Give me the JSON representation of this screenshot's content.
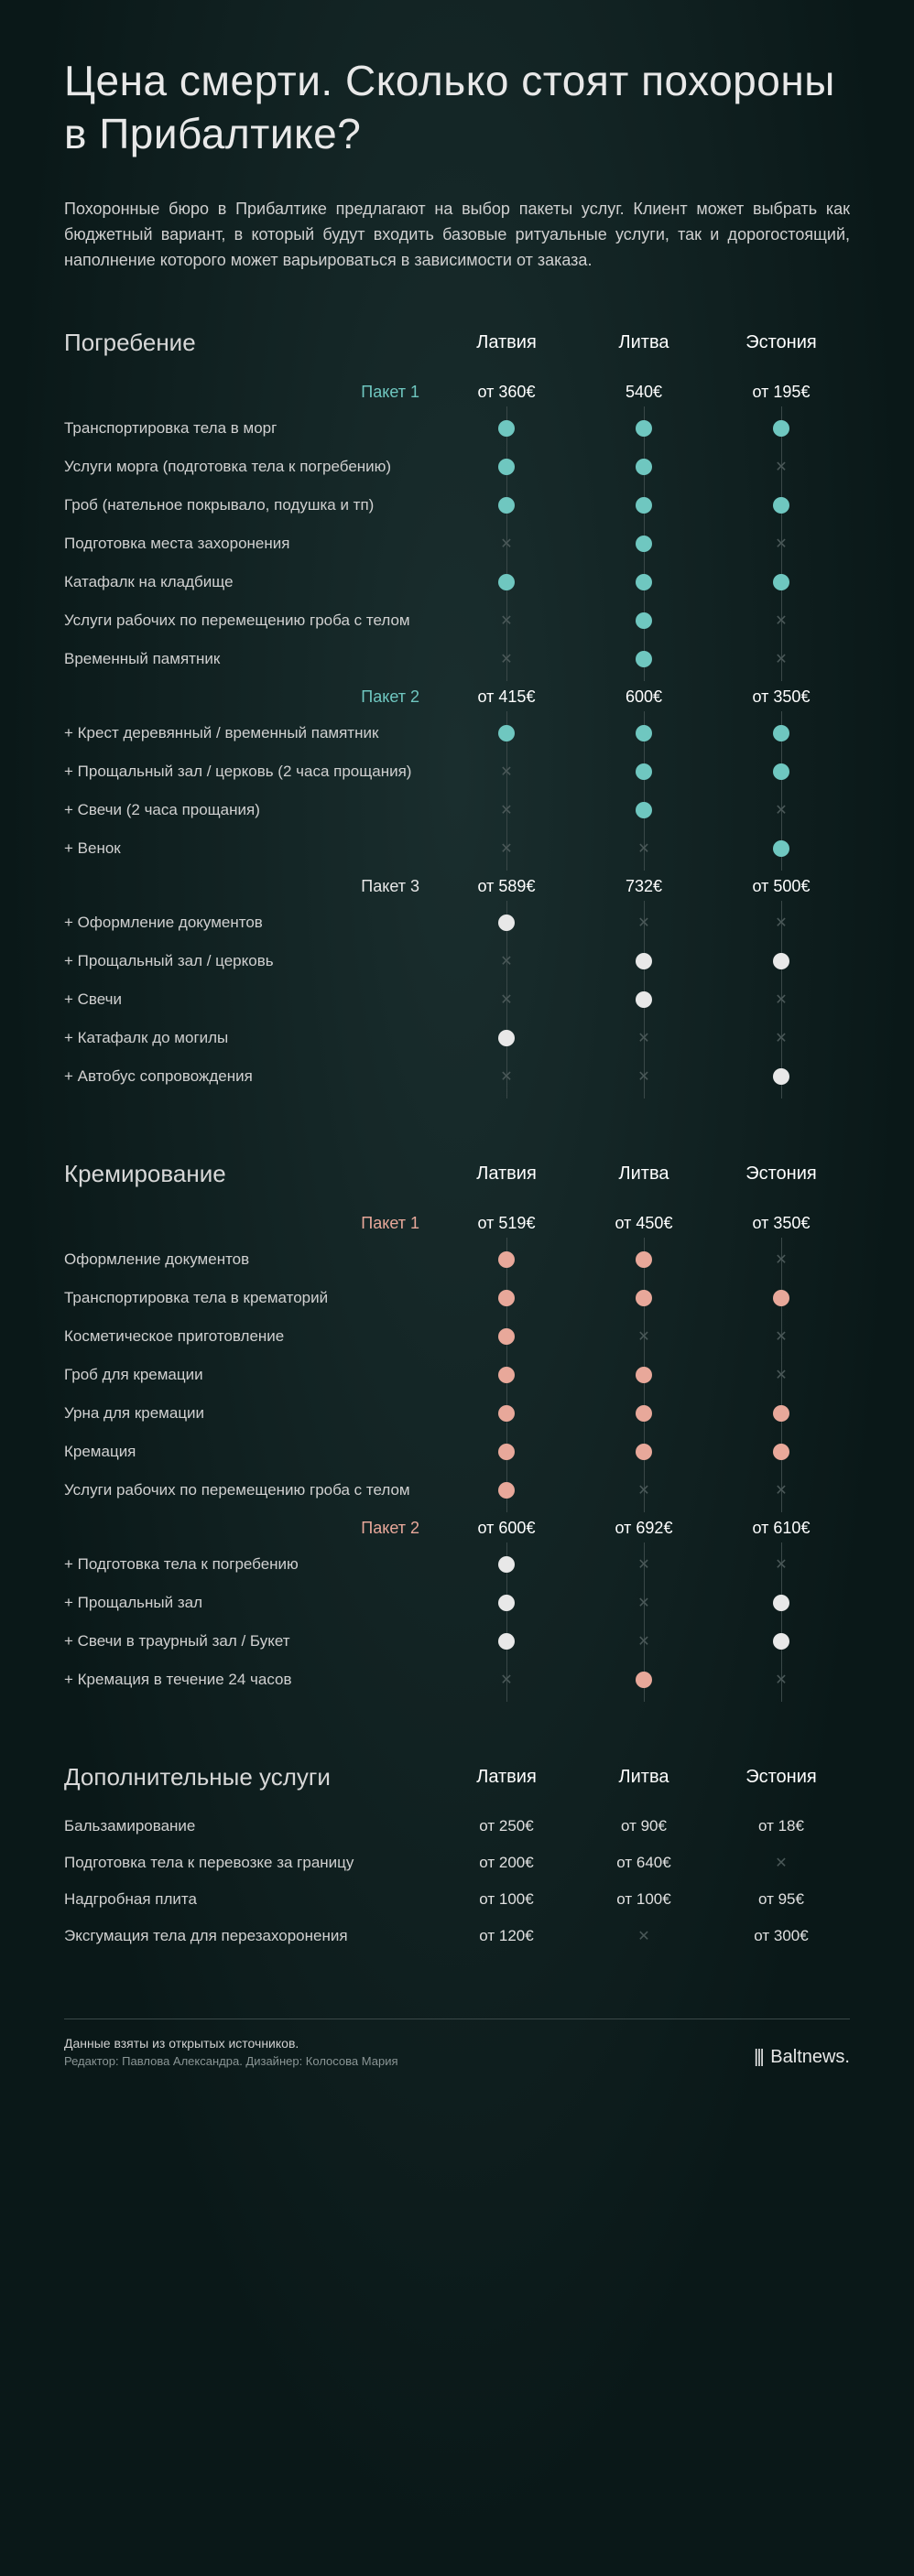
{
  "title": "Цена смерти. Сколько стоят похороны в Прибалтике?",
  "intro": "Похоронные бюро в Прибалтике предлагают на выбор пакеты услуг. Клиент может выбрать как бюджетный вариант, в который будут входить базовые ритуальные услуги, так и дорогостоящий, наполнение которого может варьироваться в зависимости от заказа.",
  "countries": [
    "Латвия",
    "Литва",
    "Эстония"
  ],
  "burial": {
    "title": "Погребение",
    "dot_color": {
      "pkg1": "teal",
      "pkg2": "teal",
      "pkg3": "white"
    },
    "packages": [
      {
        "label": "Пакет 1",
        "label_class": "pkg-burial",
        "prices": [
          "от 360€",
          "540€",
          "от 195€"
        ],
        "items": [
          {
            "label": "Транспортировка тела в морг",
            "cells": [
              "dot",
              "dot",
              "dot"
            ],
            "color": "teal"
          },
          {
            "label": "Услуги морга (подготовка тела к погребению)",
            "cells": [
              "dot",
              "dot",
              "x"
            ],
            "color": "teal"
          },
          {
            "label": "Гроб (нательное покрывало, подушка и тп)",
            "cells": [
              "dot",
              "dot",
              "dot"
            ],
            "color": "teal"
          },
          {
            "label": "Подготовка места захоронения",
            "cells": [
              "x",
              "dot",
              "x"
            ],
            "color": "teal"
          },
          {
            "label": "Катафалк на кладбище",
            "cells": [
              "dot",
              "dot",
              "dot"
            ],
            "color": "teal"
          },
          {
            "label": "Услуги рабочих по перемещению гроба с телом",
            "cells": [
              "x",
              "dot",
              "x"
            ],
            "color": "teal"
          },
          {
            "label": "Временный памятник",
            "cells": [
              "x",
              "dot",
              "x"
            ],
            "color": "teal"
          }
        ]
      },
      {
        "label": "Пакет 2",
        "label_class": "pkg-burial",
        "prices": [
          "от 415€",
          "600€",
          "от 350€"
        ],
        "items": [
          {
            "label": "+ Крест деревянный  / временный памятник",
            "cells": [
              "dot",
              "dot",
              "dot"
            ],
            "color": "teal"
          },
          {
            "label": "+ Прощальный зал / церковь (2 часа прощания)",
            "cells": [
              "x",
              "dot",
              "dot"
            ],
            "color": "teal"
          },
          {
            "label": "+ Свечи (2 часа прощания)",
            "cells": [
              "x",
              "dot",
              "x"
            ],
            "color": "teal"
          },
          {
            "label": "+ Венок",
            "cells": [
              "x",
              "x",
              "dot"
            ],
            "color": "teal"
          }
        ]
      },
      {
        "label": "Пакет 3",
        "label_class": "pkg-burial3",
        "prices": [
          "от 589€",
          "732€",
          "от 500€"
        ],
        "items": [
          {
            "label": "+ Оформление документов",
            "cells": [
              "dot",
              "x",
              "x"
            ],
            "color": "white"
          },
          {
            "label": "+ Прощальный зал / церковь",
            "cells": [
              "x",
              "dot",
              "dot"
            ],
            "color": "white"
          },
          {
            "label": "+ Свечи",
            "cells": [
              "x",
              "dot",
              "x"
            ],
            "color": "white"
          },
          {
            "label": "+ Катафалк до могилы",
            "cells": [
              "dot",
              "x",
              "x"
            ],
            "color": "white"
          },
          {
            "label": "+ Автобус сопровождения",
            "cells": [
              "x",
              "x",
              "dot"
            ],
            "color": "white"
          }
        ]
      }
    ]
  },
  "cremation": {
    "title": "Кремирование",
    "packages": [
      {
        "label": "Пакет 1",
        "label_class": "pkg-cremation",
        "prices": [
          "от 519€",
          "от 450€",
          "от 350€"
        ],
        "items": [
          {
            "label": "Оформление документов",
            "cells": [
              "dot",
              "dot",
              "x"
            ],
            "color": "peach"
          },
          {
            "label": "Транспортировка тела в крематорий",
            "cells": [
              "dot",
              "dot",
              "dot"
            ],
            "color": "peach"
          },
          {
            "label": "Косметическое приготовление",
            "cells": [
              "dot",
              "x",
              "x"
            ],
            "color": "peach"
          },
          {
            "label": "Гроб для кремации",
            "cells": [
              "dot",
              "dot",
              "x"
            ],
            "color": "peach"
          },
          {
            "label": "Урна для кремации",
            "cells": [
              "dot",
              "dot",
              "dot"
            ],
            "color": "peach"
          },
          {
            "label": "Кремация",
            "cells": [
              "dot",
              "dot",
              "dot"
            ],
            "color": "peach"
          },
          {
            "label": "Услуги рабочих по перемещению гроба с телом",
            "cells": [
              "dot",
              "x",
              "x"
            ],
            "color": "peach"
          }
        ]
      },
      {
        "label": "Пакет 2",
        "label_class": "pkg-cremation",
        "prices": [
          "от 600€",
          "от 692€",
          "от 610€"
        ],
        "items": [
          {
            "label": "+ Подготовка тела к погребению",
            "cells": [
              "dot",
              "x",
              "x"
            ],
            "color": "white"
          },
          {
            "label": "+ Прощальный зал",
            "cells": [
              "dot",
              "x",
              "dot"
            ],
            "color": "white"
          },
          {
            "label": "+ Свечи в траурный зал / Букет",
            "cells": [
              "dot",
              "x",
              "dot"
            ],
            "color": "white"
          },
          {
            "label": "+ Кремация в течение 24 часов",
            "cells": [
              "x",
              "dot",
              "x"
            ],
            "color": "peach"
          }
        ]
      }
    ]
  },
  "extras": {
    "title": "Дополнительные услуги",
    "items": [
      {
        "label": "Бальзамирование",
        "cells": [
          "от 250€",
          "от 90€",
          "от 18€"
        ]
      },
      {
        "label": "Подготовка тела к перевозке за границу",
        "cells": [
          "от 200€",
          "от 640€",
          "x"
        ]
      },
      {
        "label": "Надгробная плита",
        "cells": [
          "от 100€",
          "от 100€",
          "от 95€"
        ]
      },
      {
        "label": "Эксгумация тела для перезахоронения",
        "cells": [
          "от 120€",
          "x",
          "от 300€"
        ]
      }
    ]
  },
  "footer": {
    "source": "Данные взяты из открытых источников.",
    "credits": "Редактор: Павлова Александра. Дизайнер: Колосова Мария",
    "brand": "Baltnews."
  }
}
